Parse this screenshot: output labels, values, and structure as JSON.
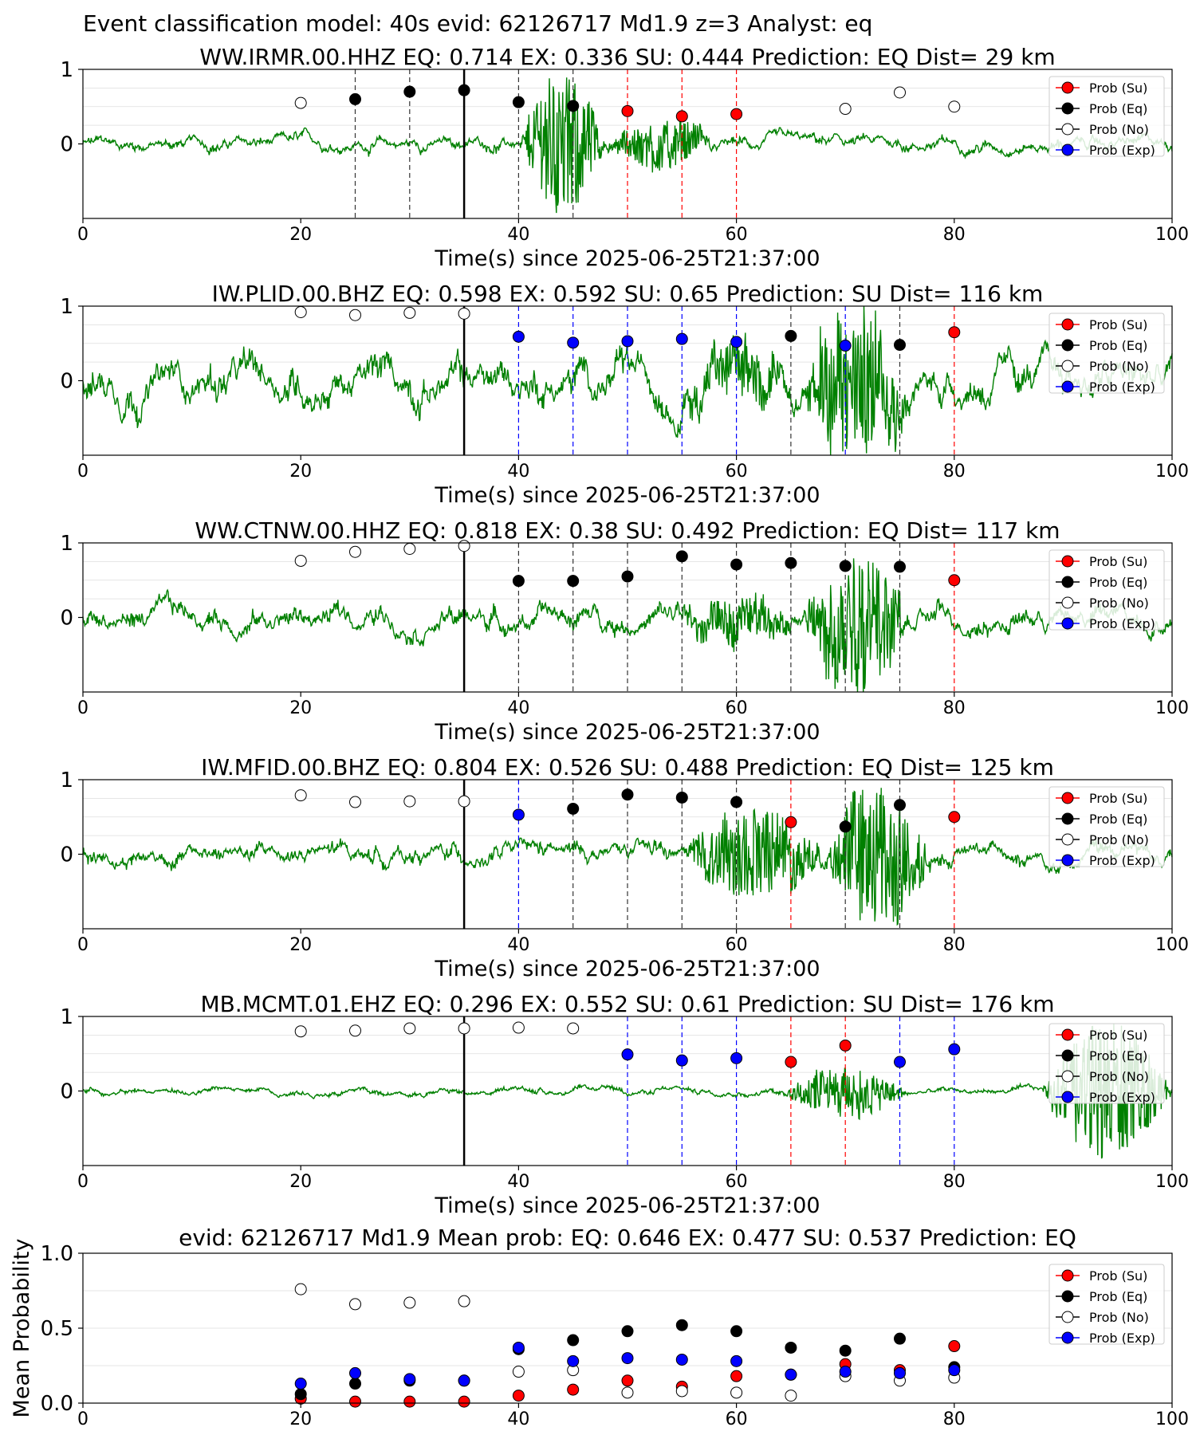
{
  "figure_title": "Event classification model: 40s evid: 62126717 Md1.9 z=3 Analyst: eq",
  "colors": {
    "waveform": "#008000",
    "su": "#ff0000",
    "eq": "#000000",
    "no": "#ffffff",
    "exp": "#0000ff",
    "grid": "#dddddd"
  },
  "legend": [
    "Prob (Su)",
    "Prob (Eq)",
    "Prob (No)",
    "Prob (Exp)"
  ],
  "chart_data": [
    {
      "type": "scatter",
      "title": "WW.IRMR.00.HHZ   EQ: 0.714  EX: 0.336  SU: 0.444   Prediction: EQ    Dist= 29 km",
      "xlabel": "Time(s) since 2025-06-25T21:37:00",
      "xlim": [
        0,
        100
      ],
      "ylim": [
        -1,
        1
      ],
      "xticks": [
        "0",
        "20",
        "40",
        "60",
        "80",
        "100"
      ],
      "yticks": [
        "1",
        "0"
      ],
      "reference_line_x": 35,
      "waveform": {
        "envelope": [
          [
            40,
            48,
            1.0
          ],
          [
            48,
            58,
            0.35
          ]
        ],
        "noise": 0.08
      },
      "points": [
        {
          "x": 20,
          "y": 0.55,
          "class": "no"
        },
        {
          "x": 25,
          "y": 0.6,
          "class": "eq"
        },
        {
          "x": 30,
          "y": 0.7,
          "class": "eq"
        },
        {
          "x": 35,
          "y": 0.72,
          "class": "eq"
        },
        {
          "x": 40,
          "y": 0.56,
          "class": "eq"
        },
        {
          "x": 45,
          "y": 0.51,
          "class": "eq"
        },
        {
          "x": 50,
          "y": 0.44,
          "class": "su"
        },
        {
          "x": 55,
          "y": 0.37,
          "class": "su"
        },
        {
          "x": 60,
          "y": 0.4,
          "class": "su"
        },
        {
          "x": 70,
          "y": 0.47,
          "class": "no"
        },
        {
          "x": 75,
          "y": 0.69,
          "class": "no"
        },
        {
          "x": 80,
          "y": 0.5,
          "class": "no"
        }
      ]
    },
    {
      "type": "scatter",
      "title": "IW.PLID.00.BHZ   EQ: 0.598  EX: 0.592  SU: 0.65   Prediction: SU    Dist= 116 km",
      "xlabel": "Time(s) since 2025-06-25T21:37:00",
      "xlim": [
        0,
        100
      ],
      "ylim": [
        -1,
        1
      ],
      "xticks": [
        "0",
        "20",
        "40",
        "60",
        "80",
        "100"
      ],
      "yticks": [
        "1",
        "0"
      ],
      "reference_line_x": 35,
      "waveform": {
        "envelope": [
          [
            54,
            66,
            0.35
          ],
          [
            66,
            76,
            1.0
          ]
        ],
        "noise": 0.25
      },
      "points": [
        {
          "x": 20,
          "y": 0.92,
          "class": "no"
        },
        {
          "x": 25,
          "y": 0.88,
          "class": "no"
        },
        {
          "x": 30,
          "y": 0.91,
          "class": "no"
        },
        {
          "x": 35,
          "y": 0.9,
          "class": "no"
        },
        {
          "x": 40,
          "y": 0.59,
          "class": "exp"
        },
        {
          "x": 45,
          "y": 0.51,
          "class": "exp"
        },
        {
          "x": 50,
          "y": 0.53,
          "class": "exp"
        },
        {
          "x": 55,
          "y": 0.56,
          "class": "exp"
        },
        {
          "x": 60,
          "y": 0.52,
          "class": "exp"
        },
        {
          "x": 65,
          "y": 0.6,
          "class": "eq"
        },
        {
          "x": 70,
          "y": 0.47,
          "class": "exp"
        },
        {
          "x": 75,
          "y": 0.48,
          "class": "eq"
        },
        {
          "x": 80,
          "y": 0.65,
          "class": "su"
        }
      ]
    },
    {
      "type": "scatter",
      "title": "WW.CTNW.00.HHZ   EQ: 0.818  EX: 0.38  SU: 0.492   Prediction: EQ    Dist= 117 km",
      "xlabel": "Time(s) since 2025-06-25T21:37:00",
      "xlim": [
        0,
        100
      ],
      "ylim": [
        -1,
        1
      ],
      "xticks": [
        "0",
        "20",
        "40",
        "60",
        "80",
        "100"
      ],
      "yticks": [
        "1",
        "0"
      ],
      "reference_line_x": 35,
      "waveform": {
        "envelope": [
          [
            54,
            66,
            0.3
          ],
          [
            66,
            76,
            1.0
          ]
        ],
        "noise": 0.15
      },
      "points": [
        {
          "x": 20,
          "y": 0.76,
          "class": "no"
        },
        {
          "x": 25,
          "y": 0.88,
          "class": "no"
        },
        {
          "x": 30,
          "y": 0.92,
          "class": "no"
        },
        {
          "x": 35,
          "y": 0.96,
          "class": "no"
        },
        {
          "x": 40,
          "y": 0.49,
          "class": "eq"
        },
        {
          "x": 45,
          "y": 0.49,
          "class": "eq"
        },
        {
          "x": 50,
          "y": 0.55,
          "class": "eq"
        },
        {
          "x": 55,
          "y": 0.82,
          "class": "eq"
        },
        {
          "x": 60,
          "y": 0.71,
          "class": "eq"
        },
        {
          "x": 65,
          "y": 0.73,
          "class": "eq"
        },
        {
          "x": 70,
          "y": 0.69,
          "class": "eq"
        },
        {
          "x": 75,
          "y": 0.68,
          "class": "eq"
        },
        {
          "x": 80,
          "y": 0.5,
          "class": "su"
        }
      ]
    },
    {
      "type": "scatter",
      "title": "IW.MFID.00.BHZ   EQ: 0.804  EX: 0.526  SU: 0.488   Prediction: EQ    Dist= 125 km",
      "xlabel": "Time(s) since 2025-06-25T21:37:00",
      "xlim": [
        0,
        100
      ],
      "ylim": [
        -1,
        1
      ],
      "xticks": [
        "0",
        "20",
        "40",
        "60",
        "80",
        "100"
      ],
      "yticks": [
        "1",
        "0"
      ],
      "reference_line_x": 35,
      "waveform": {
        "envelope": [
          [
            55,
            68,
            0.65
          ],
          [
            68,
            78,
            1.0
          ]
        ],
        "noise": 0.12
      },
      "points": [
        {
          "x": 20,
          "y": 0.79,
          "class": "no"
        },
        {
          "x": 25,
          "y": 0.7,
          "class": "no"
        },
        {
          "x": 30,
          "y": 0.71,
          "class": "no"
        },
        {
          "x": 35,
          "y": 0.71,
          "class": "no"
        },
        {
          "x": 40,
          "y": 0.53,
          "class": "exp"
        },
        {
          "x": 45,
          "y": 0.61,
          "class": "eq"
        },
        {
          "x": 50,
          "y": 0.8,
          "class": "eq"
        },
        {
          "x": 55,
          "y": 0.76,
          "class": "eq"
        },
        {
          "x": 60,
          "y": 0.7,
          "class": "eq"
        },
        {
          "x": 65,
          "y": 0.43,
          "class": "su"
        },
        {
          "x": 70,
          "y": 0.37,
          "class": "eq"
        },
        {
          "x": 75,
          "y": 0.66,
          "class": "eq"
        },
        {
          "x": 80,
          "y": 0.5,
          "class": "su"
        }
      ]
    },
    {
      "type": "scatter",
      "title": "MB.MCMT.01.EHZ   EQ: 0.296  EX: 0.552  SU: 0.61   Prediction: SU    Dist= 176 km",
      "xlabel": "Time(s) since 2025-06-25T21:37:00",
      "xlim": [
        0,
        100
      ],
      "ylim": [
        -1,
        1
      ],
      "xticks": [
        "0",
        "20",
        "40",
        "60",
        "80",
        "100"
      ],
      "yticks": [
        "1",
        "0"
      ],
      "reference_line_x": 35,
      "waveform": {
        "envelope": [
          [
            64,
            76,
            0.35
          ],
          [
            88,
            100,
            0.95
          ]
        ],
        "noise": 0.04
      },
      "points": [
        {
          "x": 20,
          "y": 0.8,
          "class": "no"
        },
        {
          "x": 25,
          "y": 0.81,
          "class": "no"
        },
        {
          "x": 30,
          "y": 0.84,
          "class": "no"
        },
        {
          "x": 35,
          "y": 0.84,
          "class": "no"
        },
        {
          "x": 40,
          "y": 0.85,
          "class": "no"
        },
        {
          "x": 45,
          "y": 0.84,
          "class": "no"
        },
        {
          "x": 50,
          "y": 0.49,
          "class": "exp"
        },
        {
          "x": 55,
          "y": 0.41,
          "class": "exp"
        },
        {
          "x": 60,
          "y": 0.44,
          "class": "exp"
        },
        {
          "x": 65,
          "y": 0.39,
          "class": "su"
        },
        {
          "x": 70,
          "y": 0.61,
          "class": "su"
        },
        {
          "x": 75,
          "y": 0.39,
          "class": "exp"
        },
        {
          "x": 80,
          "y": 0.56,
          "class": "exp"
        }
      ]
    },
    {
      "type": "scatter",
      "title": "evid: 62126717  Md1.9   Mean prob:   EQ: 0.646  EX: 0.477  SU: 0.537   Prediction: EQ",
      "ylabel": "Mean Probability",
      "xlim": [
        0,
        100
      ],
      "ylim": [
        0,
        1
      ],
      "xticks": [
        "0",
        "20",
        "40",
        "60",
        "80",
        "100"
      ],
      "yticks": [
        "1.0",
        "0.5",
        "0.0"
      ],
      "series": [
        {
          "class": "su",
          "x": [
            20,
            25,
            30,
            35,
            40,
            45,
            50,
            55,
            60,
            65,
            70,
            75,
            80
          ],
          "y": [
            0.03,
            0.01,
            0.01,
            0.01,
            0.05,
            0.09,
            0.15,
            0.11,
            0.18,
            0.19,
            0.26,
            0.22,
            0.38
          ]
        },
        {
          "class": "eq",
          "x": [
            20,
            25,
            30,
            35,
            40,
            45,
            50,
            55,
            60,
            65,
            70,
            75,
            80
          ],
          "y": [
            0.06,
            0.13,
            0.15,
            0.15,
            0.36,
            0.42,
            0.48,
            0.52,
            0.48,
            0.37,
            0.35,
            0.43,
            0.24
          ]
        },
        {
          "class": "no",
          "x": [
            20,
            25,
            30,
            35,
            40,
            45,
            50,
            55,
            60,
            65,
            70,
            75,
            80
          ],
          "y": [
            0.76,
            0.66,
            0.67,
            0.68,
            0.21,
            0.22,
            0.07,
            0.08,
            0.07,
            0.05,
            0.18,
            0.15,
            0.17
          ]
        },
        {
          "class": "exp",
          "x": [
            20,
            25,
            30,
            35,
            40,
            45,
            50,
            55,
            60,
            65,
            70,
            75,
            80
          ],
          "y": [
            0.13,
            0.2,
            0.16,
            0.15,
            0.37,
            0.28,
            0.3,
            0.29,
            0.28,
            0.19,
            0.21,
            0.2,
            0.22
          ]
        }
      ]
    }
  ]
}
